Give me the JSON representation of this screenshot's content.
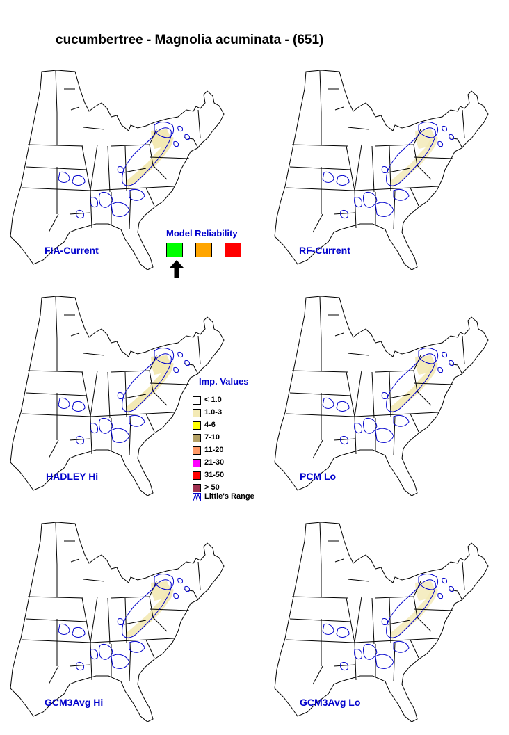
{
  "title": "cucumbertree - Magnolia acuminata - (651)",
  "maps": [
    {
      "label": "FIA-Current",
      "intensity": 1.0
    },
    {
      "label": "RF-Current",
      "intensity": 0.8
    },
    {
      "label": "HADLEY Hi",
      "intensity": 1.0
    },
    {
      "label": "PCM Lo",
      "intensity": 0.9
    },
    {
      "label": "GCM3Avg Hi",
      "intensity": 0.9
    },
    {
      "label": "GCM3Avg Lo",
      "intensity": 0.8
    }
  ],
  "model_reliability": {
    "title": "Model Reliability",
    "levels": [
      {
        "color": "#00ff00",
        "selected": true
      },
      {
        "color": "#ffa500",
        "selected": false
      },
      {
        "color": "#ff0000",
        "selected": false
      }
    ],
    "arrow_icon": "up-arrow-icon"
  },
  "legend": {
    "title": "Imp. Values",
    "items": [
      {
        "label": "< 1.0",
        "color": "#ffffff"
      },
      {
        "label": "1.0-3",
        "color": "#f3e9b4"
      },
      {
        "label": "4-6",
        "color": "#ffff00"
      },
      {
        "label": "7-10",
        "color": "#b3a064"
      },
      {
        "label": "11-20",
        "color": "#ff9966"
      },
      {
        "label": "21-30",
        "color": "#ff00ff"
      },
      {
        "label": "31-50",
        "color": "#ff0000"
      },
      {
        "label": "> 50",
        "color": "#a03050"
      }
    ],
    "range_label": "Little's Range"
  },
  "colors": {
    "state_outline": "#000000",
    "range_outline": "#0000cc",
    "importance_fill": "#f3e9b4",
    "label_text": "#0000cc"
  }
}
